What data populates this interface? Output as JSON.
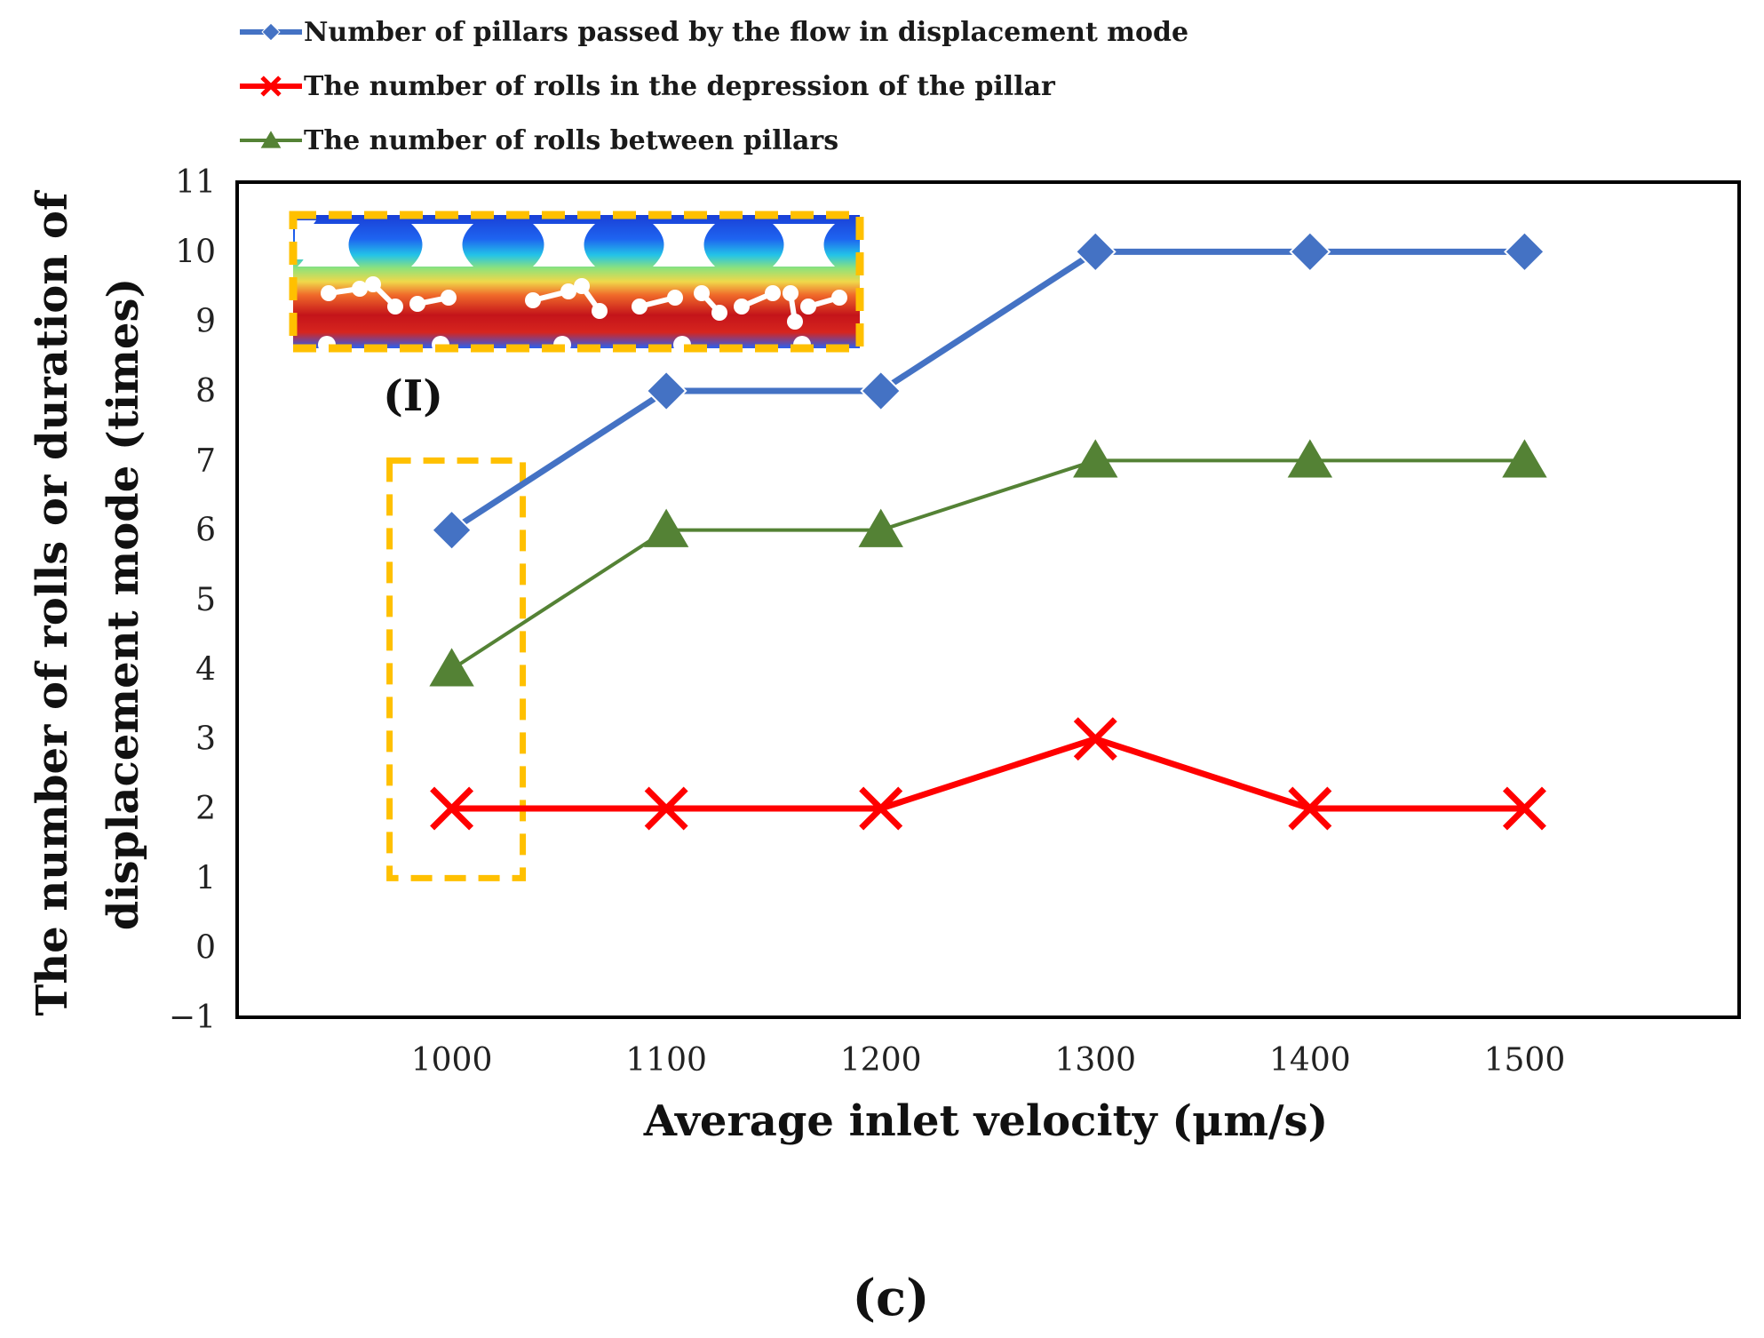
{
  "chart_data": {
    "type": "line",
    "x": [
      1000,
      1100,
      1200,
      1300,
      1400,
      1500
    ],
    "series": [
      {
        "name": "Number of pillars passed by the flow in displacement mode",
        "color": "#4472C4",
        "marker": "diamond",
        "values": [
          6,
          8,
          8,
          10,
          10,
          10
        ]
      },
      {
        "name": "The number of rolls in the depression of the pillar",
        "color": "#FF0000",
        "marker": "x",
        "values": [
          2,
          2,
          2,
          3,
          2,
          2
        ]
      },
      {
        "name": "The number of rolls between pillars",
        "color": "#548235",
        "marker": "triangle",
        "values": [
          4,
          6,
          6,
          7,
          7,
          7
        ]
      }
    ],
    "xlabel": "Average inlet velocity (μm/s)",
    "ylabel_lines": [
      "The number of rolls or duration of",
      "displacement mode (times)"
    ],
    "xlim": [
      900,
      1600
    ],
    "ylim": [
      -1,
      11
    ],
    "xticks": [
      "1000",
      "1100",
      "1200",
      "1300",
      "1400",
      "1500"
    ],
    "yticks": [
      "−1",
      "0",
      "1",
      "2",
      "3",
      "4",
      "5",
      "6",
      "7",
      "8",
      "9",
      "10",
      "11"
    ],
    "legend_position": "top",
    "inset_label": "(I)",
    "highlight_color": "#FFC000",
    "caption": "(c)"
  }
}
